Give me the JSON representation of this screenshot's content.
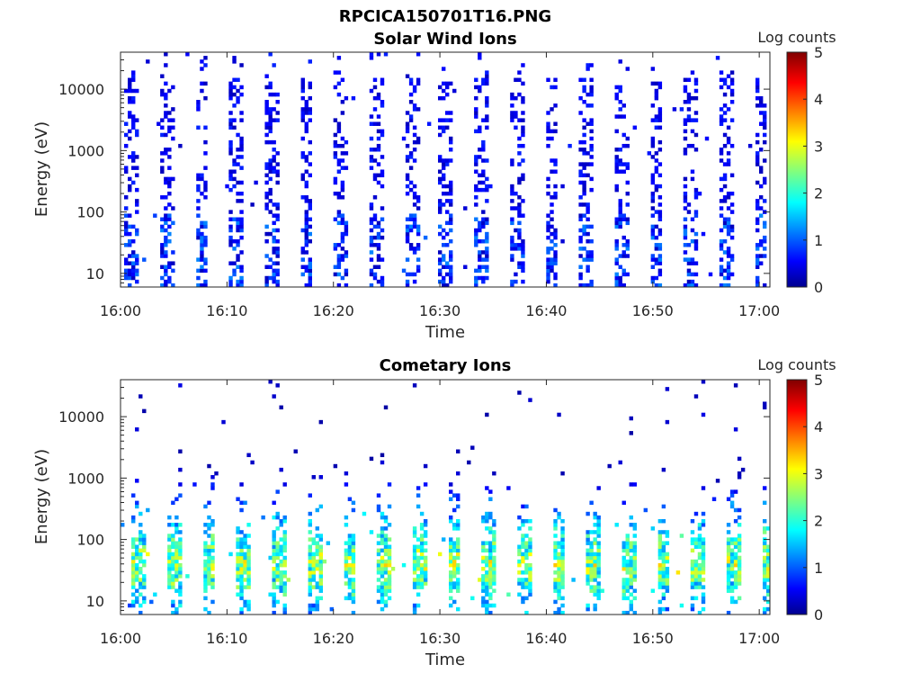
{
  "figure": {
    "title": "RPCICA150701T16.PNG"
  },
  "chart_data": [
    {
      "type": "heatmap",
      "title": "Solar Wind Ions",
      "xlabel": "Time",
      "ylabel": "Energy (eV)",
      "x_ticks": [
        "16:00",
        "16:10",
        "16:20",
        "16:30",
        "16:40",
        "16:50",
        "17:00"
      ],
      "x_range": [
        "16:00",
        "17:01"
      ],
      "y_scale": "log",
      "y_ticks": [
        10,
        100,
        1000,
        10000
      ],
      "y_tick_labels": [
        "10",
        "100",
        "1000",
        "10000"
      ],
      "y_range": [
        6,
        40000
      ],
      "colorbar": {
        "title": "Log counts",
        "range": [
          0,
          5
        ],
        "ticks": [
          "0",
          "1",
          "2",
          "3",
          "4",
          "5"
        ],
        "colormap": "jet"
      },
      "pattern": {
        "sweep_period_min": 3.28,
        "first_sweep_min": 0.3,
        "count_level_typical": 0.3,
        "count_level_max": 1.5,
        "energy_extent_max_eV": 30000
      }
    },
    {
      "type": "heatmap",
      "title": "Cometary Ions",
      "xlabel": "Time",
      "ylabel": "Energy (eV)",
      "x_ticks": [
        "16:00",
        "16:10",
        "16:20",
        "16:30",
        "16:40",
        "16:50",
        "17:00"
      ],
      "x_range": [
        "16:00",
        "17:01"
      ],
      "y_scale": "log",
      "y_ticks": [
        10,
        100,
        1000,
        10000
      ],
      "y_tick_labels": [
        "10",
        "100",
        "1000",
        "10000"
      ],
      "y_range": [
        6,
        40000
      ],
      "colorbar": {
        "title": "Log counts",
        "range": [
          0,
          5
        ],
        "ticks": [
          "0",
          "1",
          "2",
          "3",
          "4",
          "5"
        ],
        "colormap": "jet"
      },
      "pattern": {
        "sweep_period_min": 3.28,
        "first_sweep_min": 1.0,
        "peak_energy_eV": 40,
        "count_level_typical": 1.2,
        "count_level_max": 3.0,
        "energy_extent_max_eV": 1500
      }
    }
  ]
}
